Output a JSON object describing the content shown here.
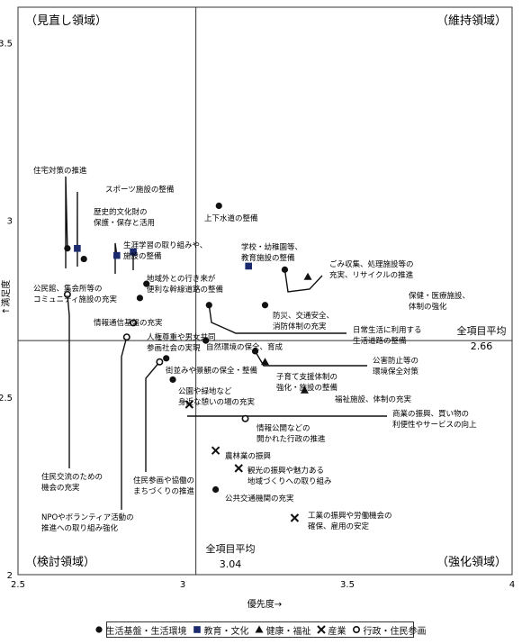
{
  "chart_data": {
    "type": "scatter",
    "xlabel": "優先度→",
    "ylabel": "↑満足度",
    "xlim": [
      2.5,
      4
    ],
    "ylim": [
      2,
      3.6
    ],
    "x_ticks": [
      "2.5",
      "3",
      "3.5",
      "4"
    ],
    "y_ticks": [
      "2",
      "2.5",
      "3",
      "3.5"
    ],
    "quadrants": {
      "top_left": "（見直し領域）",
      "top_right": "（維持領域）",
      "bottom_left": "（検討領域）",
      "bottom_right": "（強化領域）"
    },
    "avg_x": {
      "label": "全項目平均",
      "value_text": "3.04",
      "value": 3.04
    },
    "avg_y": {
      "label": "全項目平均",
      "value_text": "2.66",
      "value": 2.66
    },
    "legend": [
      {
        "symbol": "circle",
        "label": "生活基盤・生活環境"
      },
      {
        "symbol": "square",
        "label": "教育・文化"
      },
      {
        "symbol": "triangle",
        "label": "健康・福祉"
      },
      {
        "symbol": "cross",
        "label": "産業"
      },
      {
        "symbol": "ring",
        "label": "行政・住民参画"
      }
    ],
    "points": [
      {
        "category": "circle",
        "x": 2.65,
        "y": 2.92,
        "label": [
          "住宅対策の推進"
        ]
      },
      {
        "category": "circle",
        "x": 2.7,
        "y": 2.89,
        "label": [
          "公民館、集会所等の",
          "コミュニティ施設の充実"
        ]
      },
      {
        "category": "square",
        "x": 2.68,
        "y": 2.92,
        "label": [
          "スポーツ施設の整備"
        ]
      },
      {
        "category": "square",
        "x": 2.8,
        "y": 2.9,
        "label": [
          "歴史的文化財の",
          "保護・保存と活用"
        ]
      },
      {
        "category": "square",
        "x": 2.85,
        "y": 2.91,
        "label": [
          "生涯学習の取り組みや、",
          "施設の整備"
        ]
      },
      {
        "category": "circle",
        "x": 2.89,
        "y": 2.82,
        "label": [
          "地域外との行き来が",
          "便利な幹線道路の整備"
        ]
      },
      {
        "category": "circle",
        "x": 2.87,
        "y": 2.78,
        "label": [
          "情報通信基盤の充実"
        ]
      },
      {
        "category": "ring",
        "x": 2.65,
        "y": 2.79,
        "label": [
          "住民交流のための",
          "機会の充実"
        ]
      },
      {
        "category": "ring",
        "x": 2.85,
        "y": 2.71,
        "label": [
          "人権尊重や男女共同",
          "参画社会の実現"
        ]
      },
      {
        "category": "ring",
        "x": 2.83,
        "y": 2.67,
        "label": [
          "NPOやボランティア活動の",
          "推進への取り組み強化"
        ]
      },
      {
        "category": "ring",
        "x": 2.93,
        "y": 2.6,
        "label": [
          "住民参画や協働の",
          "まちづくりの推進"
        ]
      },
      {
        "category": "circle",
        "x": 3.11,
        "y": 3.04,
        "label": [
          "上下水道の整備"
        ]
      },
      {
        "category": "square",
        "x": 3.2,
        "y": 2.87,
        "label": [
          "学校・幼稚園等、",
          "教育施設の整備"
        ]
      },
      {
        "category": "circle",
        "x": 3.31,
        "y": 2.86,
        "label": [
          "ごみ収集、処理施設等の",
          "充実、リサイクルの推進"
        ]
      },
      {
        "category": "triangle",
        "x": 3.38,
        "y": 2.84,
        "label": [
          "保健・医療施設、",
          "体制の強化"
        ]
      },
      {
        "category": "circle",
        "x": 3.25,
        "y": 2.76,
        "label": [
          "防災、交通安全、",
          "消防体制の充実"
        ]
      },
      {
        "category": "circle",
        "x": 3.08,
        "y": 2.76,
        "label": [
          "日常生活に利用する",
          "生活道路の整備"
        ]
      },
      {
        "category": "circle",
        "x": 3.07,
        "y": 2.66,
        "label": [
          "自然環境の保全、育成"
        ]
      },
      {
        "category": "circle",
        "x": 3.22,
        "y": 2.63,
        "label": [
          "公害防止等の",
          "環境保全対策"
        ]
      },
      {
        "category": "circle",
        "x": 2.95,
        "y": 2.61,
        "label": [
          "街並みや景観の保全・整備"
        ]
      },
      {
        "category": "triangle",
        "x": 3.25,
        "y": 2.6,
        "label": [
          "子育て支援体制の",
          "強化・施設の整備"
        ]
      },
      {
        "category": "circle",
        "x": 2.97,
        "y": 2.55,
        "label": [
          "公園や緑地など",
          "身近な憩いの場の充実"
        ]
      },
      {
        "category": "triangle",
        "x": 3.37,
        "y": 2.52,
        "label": [
          "福祉施設、体制の充実"
        ]
      },
      {
        "category": "cross",
        "x": 3.02,
        "y": 2.48,
        "label": [
          "商業の振興、買い物の",
          "利便性やサービスの向上"
        ]
      },
      {
        "category": "ring",
        "x": 3.19,
        "y": 2.44,
        "label": [
          "情報公開などの",
          "開かれた行政の推進"
        ]
      },
      {
        "category": "cross",
        "x": 3.1,
        "y": 2.35,
        "label": [
          "農林業の振興"
        ]
      },
      {
        "category": "cross",
        "x": 3.17,
        "y": 2.3,
        "label": [
          "観光の振興や魅力ある",
          "地域づくりへの取り組み"
        ]
      },
      {
        "category": "circle",
        "x": 3.1,
        "y": 2.24,
        "label": [
          "公共交通機関の充実"
        ]
      },
      {
        "category": "cross",
        "x": 3.34,
        "y": 2.16,
        "label": [
          "工業の振興や労働機会の",
          "確保、雇用の安定"
        ]
      }
    ]
  }
}
